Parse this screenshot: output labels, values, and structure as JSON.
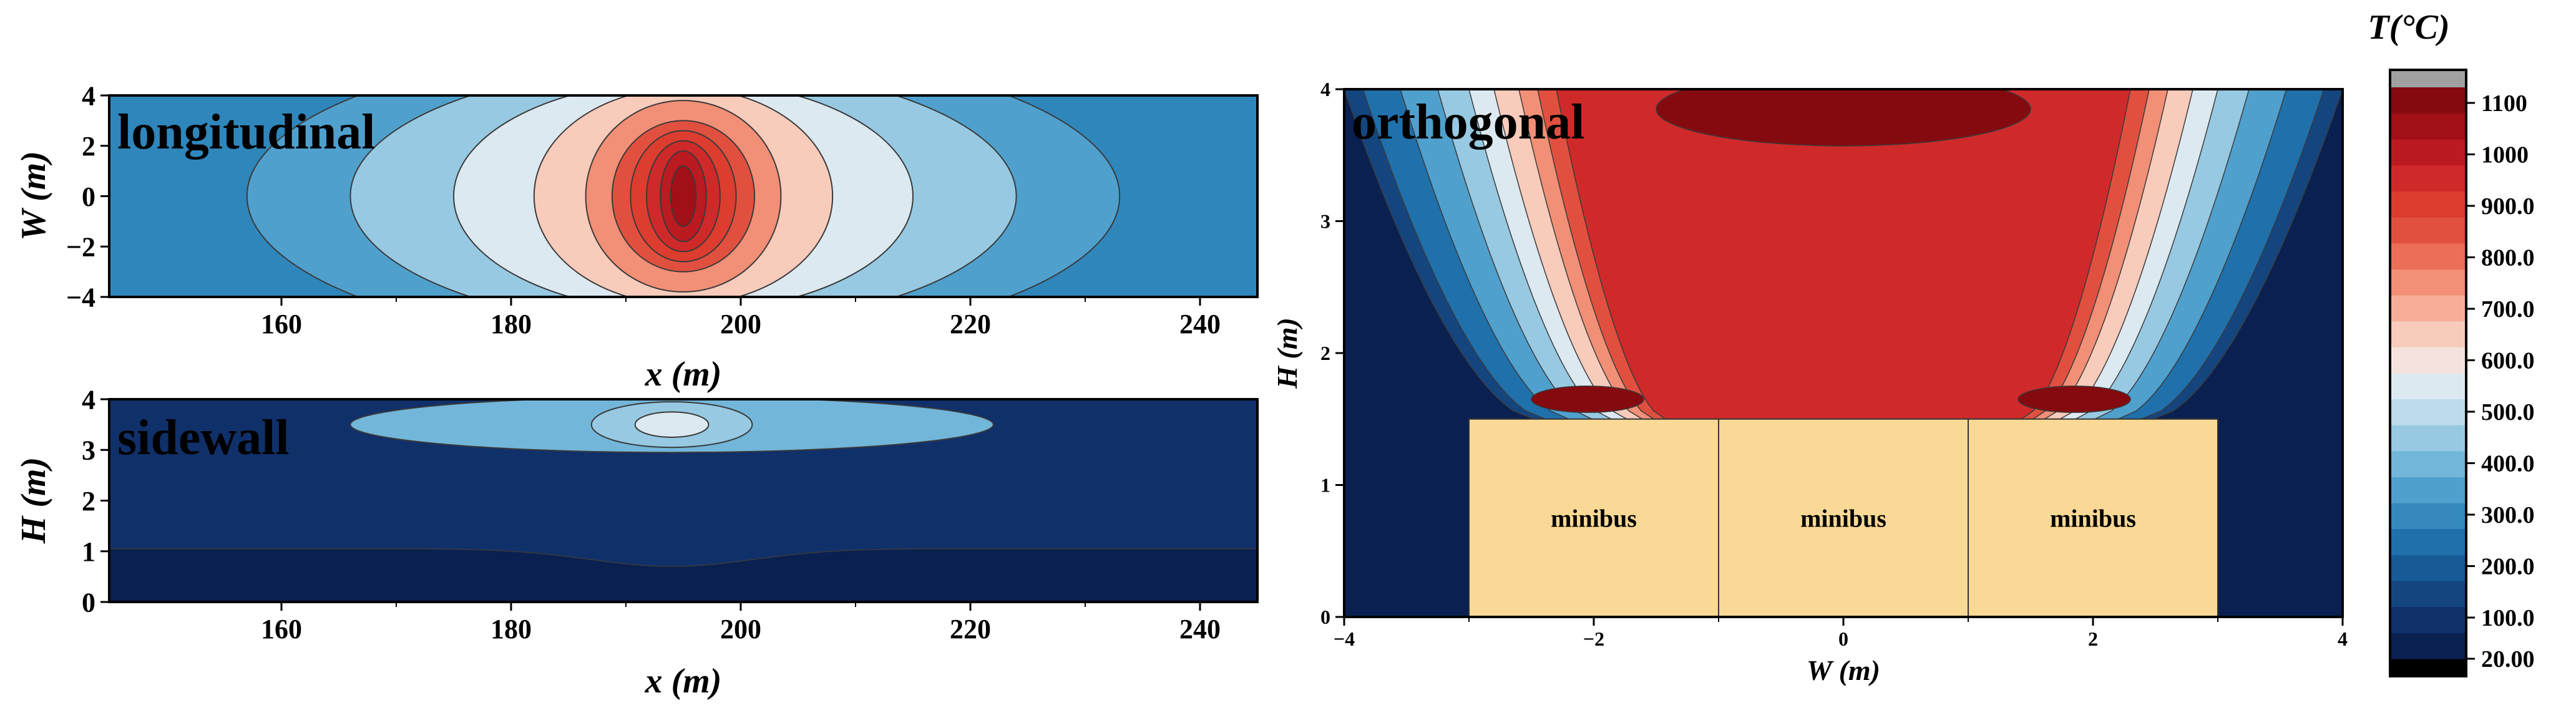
{
  "colors": {
    "scale": [
      "#0a2050",
      "#10306a",
      "#14457f",
      "#165a96",
      "#1f70ab",
      "#3589bd",
      "#4fa0cd",
      "#72b6d9",
      "#97c9e2",
      "#bcdbec",
      "#dde9f1",
      "#f4e3dc",
      "#f8cbbb",
      "#f6ae98",
      "#f28f77",
      "#ea6e58",
      "#e1503f",
      "#dc3d2f",
      "#d0292a",
      "#bb1a20",
      "#a10f17",
      "#840a0f"
    ],
    "overflow": "#a0a0a0",
    "underflow": "#000000",
    "bus_fill": "#fad895",
    "contour_line": "#3a3a3a"
  },
  "chart_data": [
    {
      "type": "heatmap",
      "name": "longitudinal",
      "title": "longitudinal",
      "xlabel": "x (m)",
      "ylabel": "W (m)",
      "xlim": [
        145,
        245
      ],
      "ylim": [
        -4,
        4
      ],
      "xticks": [
        160,
        180,
        200,
        220,
        240
      ],
      "yticks": [
        -4,
        -2,
        0,
        2,
        4
      ],
      "x_tick_labels": [
        "160",
        "180",
        "200",
        "220",
        "240"
      ],
      "y_tick_labels": [
        "−4",
        "−2",
        "0",
        "2",
        "4"
      ],
      "fire_center": {
        "x": 195,
        "y": 0
      },
      "peak_temperature": 1000
    },
    {
      "type": "heatmap",
      "name": "sidewall",
      "title": "sidewall",
      "xlabel": "x (m)",
      "ylabel": "H (m)",
      "xlim": [
        145,
        245
      ],
      "ylim": [
        0,
        4
      ],
      "xticks": [
        160,
        180,
        200,
        220,
        240
      ],
      "yticks": [
        0,
        1,
        2,
        3,
        4
      ],
      "x_tick_labels": [
        "160",
        "180",
        "200",
        "220",
        "240"
      ],
      "y_tick_labels": [
        "0",
        "1",
        "2",
        "3",
        "4"
      ],
      "hot_spot": {
        "x": 194,
        "y": 3.5
      },
      "peak_temperature": 530
    },
    {
      "type": "heatmap",
      "name": "orthogonal",
      "title": "orthogonal",
      "xlabel": "W (m)",
      "ylabel": "H (m)",
      "xlim": [
        -4,
        4
      ],
      "ylim": [
        0,
        4
      ],
      "xticks": [
        -4,
        -2,
        0,
        2,
        4
      ],
      "yticks": [
        0,
        1,
        2,
        3,
        4
      ],
      "x_tick_labels": [
        "−4",
        "−2",
        "0",
        "2",
        "4"
      ],
      "y_tick_labels": [
        "0",
        "1",
        "2",
        "3",
        "4"
      ],
      "vehicles": [
        {
          "label": "minibus",
          "x0": -3,
          "x1": -1,
          "y0": 0,
          "y1": 1.5
        },
        {
          "label": "minibus",
          "x0": -1,
          "x1": 1,
          "y0": 0,
          "y1": 1.5
        },
        {
          "label": "minibus",
          "x0": 1,
          "x1": 3,
          "y0": 0,
          "y1": 1.5
        }
      ],
      "peak_temperature": 1080
    }
  ],
  "colorbar": {
    "title": "T(°C)",
    "min": 0,
    "max": 1150,
    "ticks": [
      20,
      100,
      200,
      300,
      400,
      500,
      600,
      700,
      800,
      900,
      1000,
      1100
    ],
    "tick_labels": [
      "20.00",
      "100.0",
      "200.0",
      "300.0",
      "400.0",
      "500.0",
      "600.0",
      "700.0",
      "800.0",
      "900.0",
      "1000",
      "1100"
    ]
  }
}
